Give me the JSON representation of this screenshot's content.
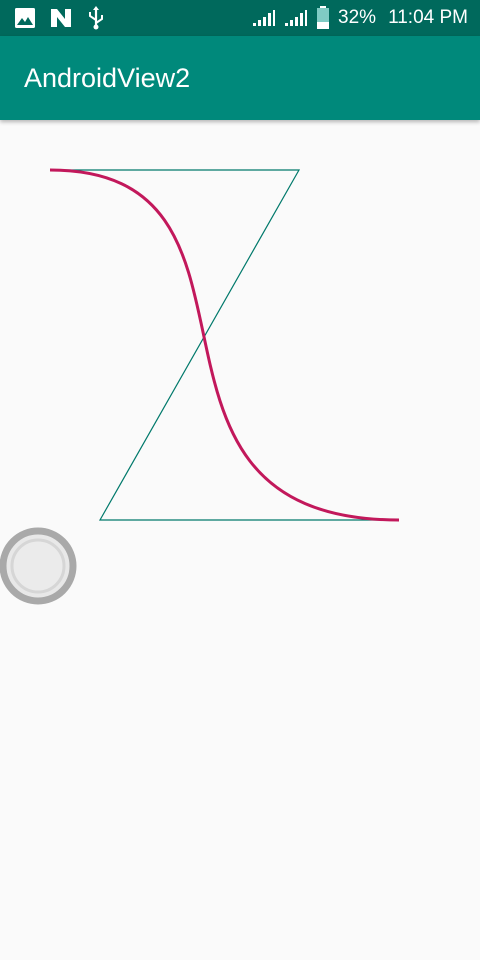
{
  "status_bar": {
    "battery_percent": "32%",
    "time": "11:04 PM",
    "left_icons": [
      "image-icon",
      "n-notification-icon",
      "usb-icon"
    ],
    "right_icons": [
      "signal-icon",
      "signal-icon",
      "battery-icon"
    ]
  },
  "app_bar": {
    "title": "AndroidView2",
    "color": "#00897b"
  },
  "canvas": {
    "curve_color": "#c2185b",
    "line_color": "#00796b",
    "handle_color": "#9e9e9e"
  }
}
